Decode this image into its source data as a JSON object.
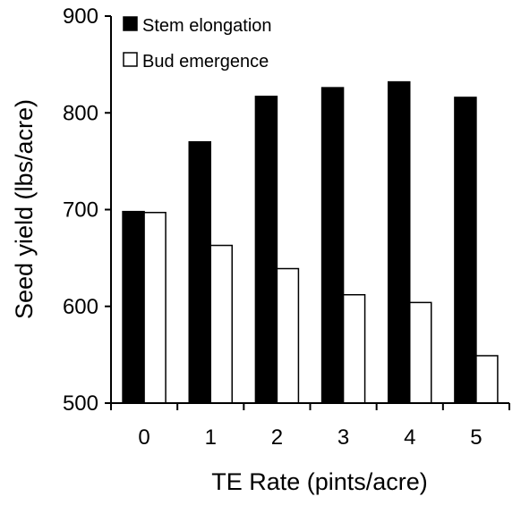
{
  "chart_data": {
    "type": "bar",
    "title": "",
    "xlabel": "TE Rate (pints/acre)",
    "ylabel": "Seed yield (lbs/acre)",
    "categories": [
      "0",
      "1",
      "2",
      "3",
      "4",
      "5"
    ],
    "ylim": [
      500,
      900
    ],
    "yticks": [
      "500",
      "600",
      "700",
      "800",
      "900"
    ],
    "grid": false,
    "legend": "top-left",
    "series": [
      {
        "name": "Stem elongation",
        "fill": "#000000",
        "values": [
          698,
          770,
          817,
          826,
          832,
          816
        ]
      },
      {
        "name": "Bud emergence",
        "fill": "#ffffff",
        "values": [
          697,
          663,
          639,
          612,
          604,
          549
        ]
      }
    ]
  }
}
